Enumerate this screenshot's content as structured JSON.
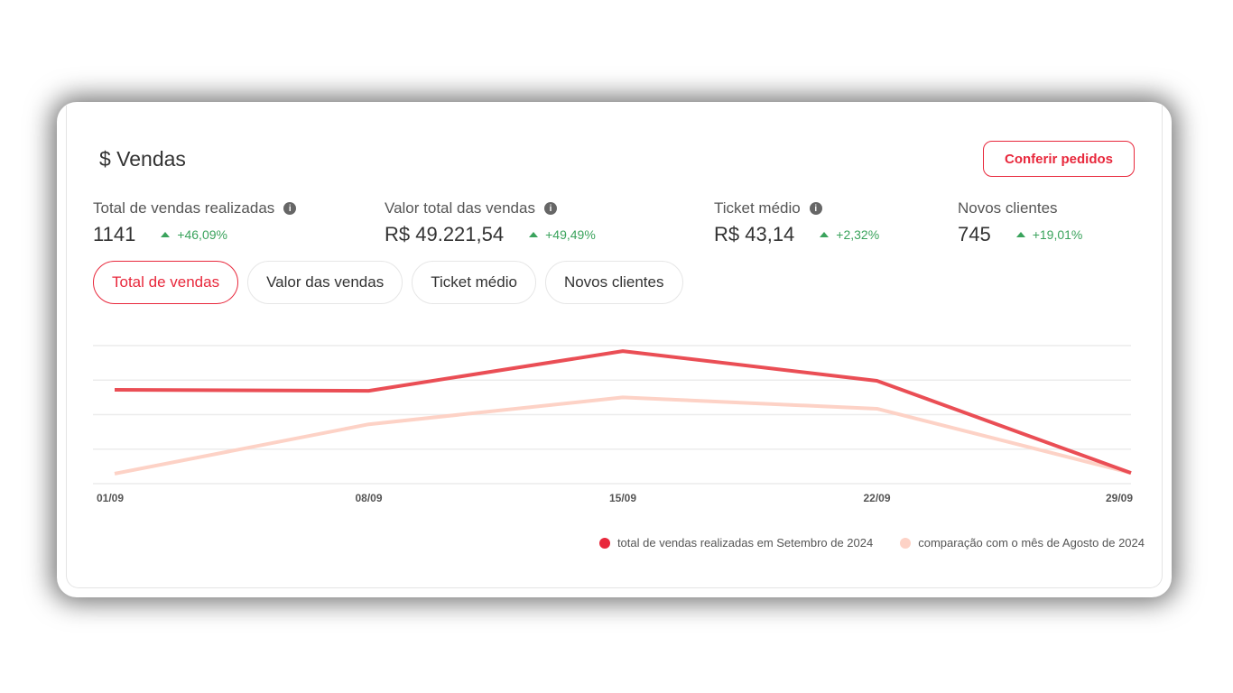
{
  "header": {
    "title": "$ Vendas",
    "button_label": "Conferir pedidos"
  },
  "metrics": [
    {
      "label": "Total de vendas realizadas",
      "value": "1141",
      "delta": "+46,09%",
      "info": true
    },
    {
      "label": "Valor total das vendas",
      "value": "R$ 49.221,54",
      "delta": "+49,49%",
      "info": true
    },
    {
      "label": "Ticket médio",
      "value": "R$ 43,14",
      "delta": "+2,32%",
      "info": true
    },
    {
      "label": "Novos clientes",
      "value": "745",
      "delta": "+19,01%",
      "info": false
    }
  ],
  "tabs": [
    {
      "label": "Total de vendas",
      "active": true
    },
    {
      "label": "Valor das vendas"
    },
    {
      "label": "Ticket médio"
    },
    {
      "label": "Novos clientes"
    }
  ],
  "colors": {
    "accent": "#e8283c",
    "series1": "#ea4e55",
    "series2": "#fdd2c6",
    "positive": "#3aa35c"
  },
  "chart_data": {
    "type": "line",
    "categories": [
      "01/09",
      "08/09",
      "15/09",
      "22/09",
      "29/09"
    ],
    "ylim": [
      0,
      4
    ],
    "grid": true,
    "y_axis_labels_shown": false,
    "legend_placement": "bottom-right",
    "series": [
      {
        "name": "total de vendas realizadas em Setembro de 2024",
        "values": [
          2.72,
          2.69,
          3.84,
          2.98,
          0.31
        ]
      },
      {
        "name": "comparação com o mês de Agosto de 2024",
        "values": [
          0.29,
          1.72,
          2.5,
          2.17,
          0.31
        ]
      }
    ]
  }
}
